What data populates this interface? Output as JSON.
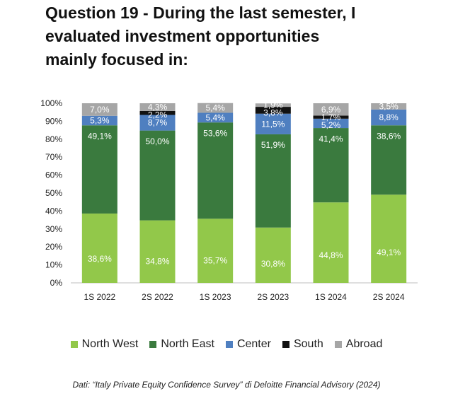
{
  "title": "Question 19 - During the last semester, I\nevaluated investment opportunities\nmainly focused in:",
  "source": "Dati: “Italy Private Equity Confidence Survey” di Deloitte Financial Advisory (2024)",
  "chart_data": {
    "type": "bar",
    "stacked": true,
    "title": "Question 19 - During the last semester, I evaluated investment opportunities mainly focused in:",
    "categories": [
      "1S 2022",
      "2S 2022",
      "1S 2023",
      "2S 2023",
      "1S 2024",
      "2S 2024"
    ],
    "ylim": [
      0,
      100
    ],
    "yticks": [
      "0%",
      "10%",
      "20%",
      "30%",
      "40%",
      "50%",
      "60%",
      "70%",
      "80%",
      "90%",
      "100%"
    ],
    "legend_position": "bottom",
    "series": [
      {
        "name": "North West",
        "color": "#92c84a",
        "values": [
          38.6,
          34.8,
          35.7,
          30.8,
          44.8,
          49.1
        ],
        "labels": [
          "38,6%",
          "34,8%",
          "35,7%",
          "30,8%",
          "44,8%",
          "49,1%"
        ]
      },
      {
        "name": "North East",
        "color": "#3a7a3e",
        "values": [
          49.1,
          50.0,
          53.6,
          51.9,
          41.4,
          38.6
        ],
        "labels": [
          "49,1%",
          "50,0%",
          "53,6%",
          "51,9%",
          "41,4%",
          "38,6%"
        ]
      },
      {
        "name": "Center",
        "color": "#4f7fc0",
        "values": [
          5.3,
          8.7,
          5.4,
          11.5,
          5.2,
          8.8
        ],
        "labels": [
          "5,3%",
          "8,7%",
          "5,4%",
          "11,5%",
          "5,2%",
          "8,8%"
        ]
      },
      {
        "name": "South",
        "color": "#111111",
        "values": [
          0,
          2.2,
          0,
          3.8,
          1.7,
          0
        ],
        "labels": [
          "",
          "2,2%",
          "",
          "3,8%",
          "1,7%",
          ""
        ]
      },
      {
        "name": "Abroad",
        "color": "#a6a6a6",
        "values": [
          7.0,
          4.3,
          5.4,
          1.9,
          6.9,
          3.5
        ],
        "labels": [
          "7,0%",
          "4,3%",
          "5,4%",
          "1,9%",
          "6,9%",
          "3,5%"
        ]
      }
    ]
  }
}
